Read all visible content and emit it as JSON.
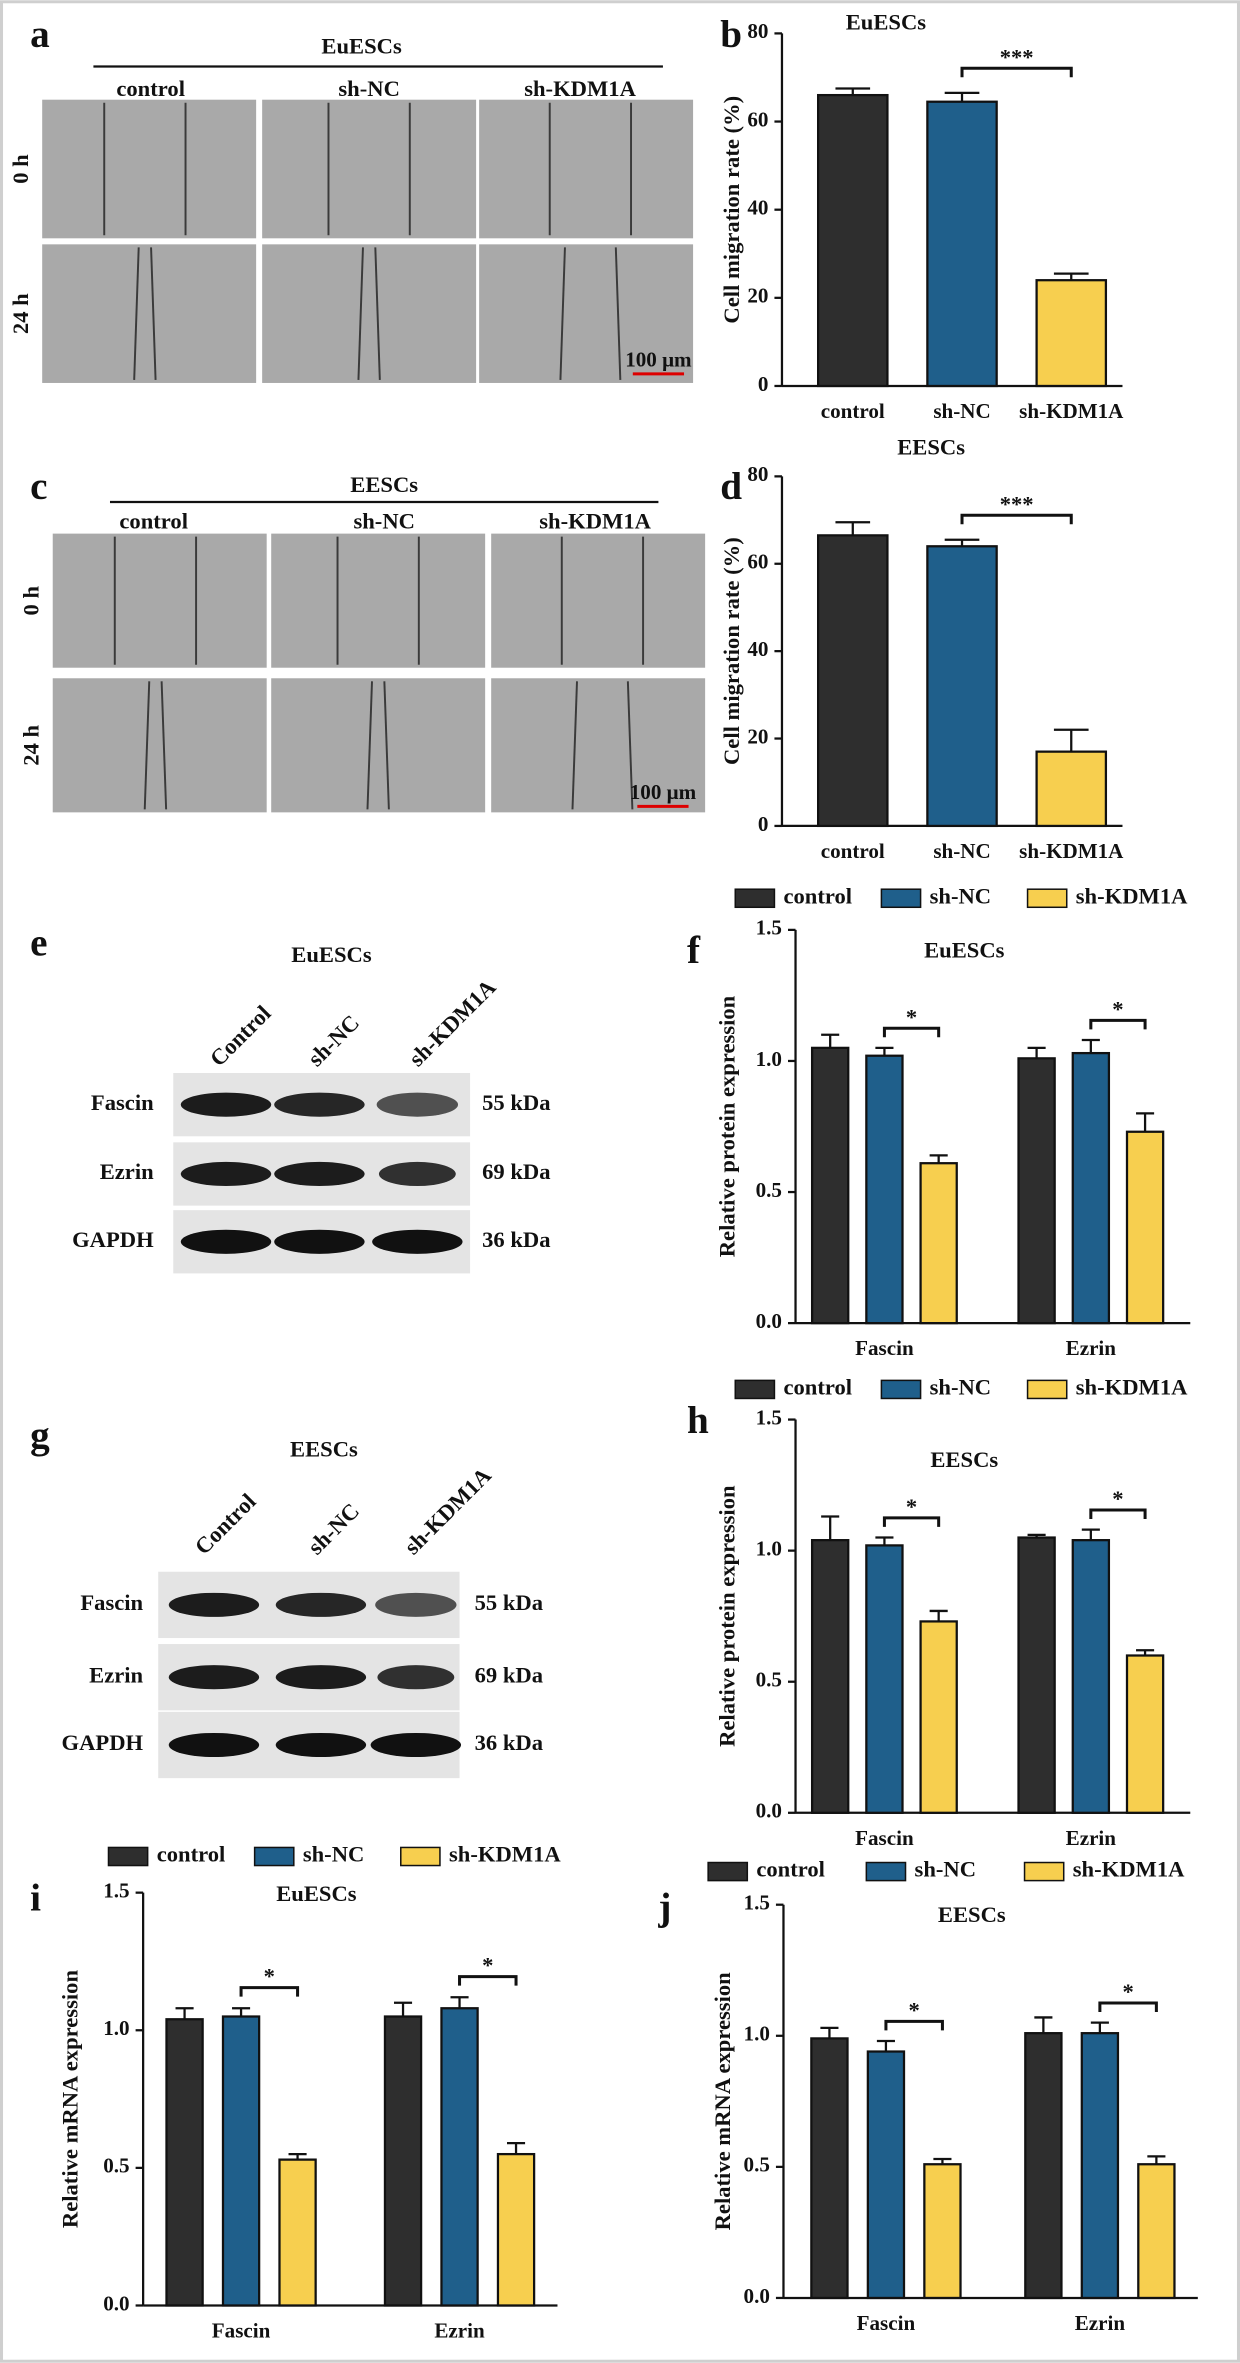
{
  "figure": {
    "image_panels": [
      {
        "label": "a",
        "title": "EuESCs",
        "columns": [
          "control",
          "sh-NC",
          "sh-KDM1A"
        ],
        "rows": [
          "0 h",
          "24 h"
        ],
        "scale_bar": "100 μm"
      },
      {
        "label": "c",
        "title": "EESCs",
        "columns": [
          "control",
          "sh-NC",
          "sh-KDM1A"
        ],
        "rows": [
          "0 h",
          "24 h"
        ],
        "scale_bar": "100 μm"
      }
    ],
    "blot_panels": [
      {
        "label": "e",
        "title": "EuESCs",
        "lanes": [
          "Control",
          "sh-NC",
          "sh-KDM1A"
        ],
        "proteins": [
          "Fascin",
          "Ezrin",
          "GAPDH"
        ],
        "sizes": [
          "55 kDa",
          "69 kDa",
          "36 kDa"
        ]
      },
      {
        "label": "g",
        "title": "EESCs",
        "lanes": [
          "Control",
          "sh-NC",
          "sh-KDM1A"
        ],
        "proteins": [
          "Fascin",
          "Ezrin",
          "GAPDH"
        ],
        "sizes": [
          "55 kDa",
          "69 kDa",
          "36 kDa"
        ]
      }
    ]
  },
  "chart_data": [
    {
      "type": "bar",
      "label": "b",
      "title": "EuESCs",
      "y_label": "Cell migration rate (%)",
      "categories": [
        "control",
        "sh-NC",
        "sh-KDM1A"
      ],
      "values": [
        66,
        64.5,
        24
      ],
      "errors": [
        1.5,
        2,
        1.5
      ],
      "colors": [
        "#2e2e2e",
        "#1f5f8b",
        "#f7cf4f"
      ],
      "ylim": [
        0,
        80
      ],
      "yticks": [
        0,
        20,
        40,
        60,
        80
      ],
      "significance": "***"
    },
    {
      "type": "bar",
      "label": "d",
      "title": "EESCs",
      "y_label": "Cell migration rate (%)",
      "categories": [
        "control",
        "sh-NC",
        "sh-KDM1A"
      ],
      "values": [
        66.5,
        64,
        17
      ],
      "errors": [
        3,
        1.5,
        5
      ],
      "colors": [
        "#2e2e2e",
        "#1f5f8b",
        "#f7cf4f"
      ],
      "ylim": [
        0,
        80
      ],
      "yticks": [
        0,
        20,
        40,
        60,
        80
      ],
      "significance": "***"
    },
    {
      "type": "grouped_bar",
      "label": "f",
      "title": "EuESCs",
      "y_label": "Relative  protein expression",
      "legend": "top",
      "categories": [
        "Fascin",
        "Ezrin"
      ],
      "series": [
        {
          "name": "control",
          "color": "#2e2e2e",
          "values": [
            1.05,
            1.01
          ],
          "errors": [
            0.05,
            0.04
          ]
        },
        {
          "name": "sh-NC",
          "color": "#1f5f8b",
          "values": [
            1.02,
            1.03
          ],
          "errors": [
            0.03,
            0.05
          ]
        },
        {
          "name": "sh-KDM1A",
          "color": "#f7cf4f",
          "values": [
            0.61,
            0.73
          ],
          "errors": [
            0.03,
            0.07
          ]
        }
      ],
      "ylim": [
        0,
        1.5
      ],
      "yticks": [
        {
          "value": 0,
          "label": "0.0"
        },
        {
          "value": 0.5,
          "label": "0.5"
        },
        {
          "value": 1,
          "label": "1.0"
        },
        {
          "value": 1.5,
          "label": "1.5"
        }
      ],
      "significance": [
        "*",
        "*"
      ]
    },
    {
      "type": "grouped_bar",
      "label": "h",
      "title": "EESCs",
      "y_label": "Relative  protein expression",
      "legend": "top",
      "categories": [
        "Fascin",
        "Ezrin"
      ],
      "series": [
        {
          "name": "control",
          "color": "#2e2e2e",
          "values": [
            1.04,
            1.05
          ],
          "errors": [
            0.09,
            0.01
          ]
        },
        {
          "name": "sh-NC",
          "color": "#1f5f8b",
          "values": [
            1.02,
            1.04
          ],
          "errors": [
            0.03,
            0.04
          ]
        },
        {
          "name": "sh-KDM1A",
          "color": "#f7cf4f",
          "values": [
            0.73,
            0.6
          ],
          "errors": [
            0.04,
            0.02
          ]
        }
      ],
      "ylim": [
        0,
        1.5
      ],
      "yticks": [
        {
          "value": 0,
          "label": "0.0"
        },
        {
          "value": 0.5,
          "label": "0.5"
        },
        {
          "value": 1,
          "label": "1.0"
        },
        {
          "value": 1.5,
          "label": "1.5"
        }
      ],
      "significance": [
        "*",
        "*"
      ]
    },
    {
      "type": "grouped_bar",
      "label": "i",
      "title": "EuESCs",
      "y_label": "Relative  mRNA expression",
      "legend": "top",
      "categories": [
        "Fascin",
        "Ezrin"
      ],
      "series": [
        {
          "name": "control",
          "color": "#2e2e2e",
          "values": [
            1.04,
            1.05
          ],
          "errors": [
            0.04,
            0.05
          ]
        },
        {
          "name": "sh-NC",
          "color": "#1f5f8b",
          "values": [
            1.05,
            1.08
          ],
          "errors": [
            0.03,
            0.04
          ]
        },
        {
          "name": "sh-KDM1A",
          "color": "#f7cf4f",
          "values": [
            0.53,
            0.55
          ],
          "errors": [
            0.02,
            0.04
          ]
        }
      ],
      "ylim": [
        0,
        1.5
      ],
      "yticks": [
        {
          "value": 0,
          "label": "0.0"
        },
        {
          "value": 0.5,
          "label": "0.5"
        },
        {
          "value": 1,
          "label": "1.0"
        },
        {
          "value": 1.5,
          "label": "1.5"
        }
      ],
      "significance": [
        "*",
        "*"
      ]
    },
    {
      "type": "grouped_bar",
      "label": "j",
      "title": "EESCs",
      "y_label": "Relative  mRNA expression",
      "legend": "top",
      "categories": [
        "Fascin",
        "Ezrin"
      ],
      "series": [
        {
          "name": "control",
          "color": "#2e2e2e",
          "values": [
            0.99,
            1.01
          ],
          "errors": [
            0.04,
            0.06
          ]
        },
        {
          "name": "sh-NC",
          "color": "#1f5f8b",
          "values": [
            0.94,
            1.01
          ],
          "errors": [
            0.04,
            0.04
          ]
        },
        {
          "name": "sh-KDM1A",
          "color": "#f7cf4f",
          "values": [
            0.51,
            0.51
          ],
          "errors": [
            0.02,
            0.03
          ]
        }
      ],
      "ylim": [
        0,
        1.5
      ],
      "yticks": [
        {
          "value": 0,
          "label": "0.0"
        },
        {
          "value": 0.5,
          "label": "0.5"
        },
        {
          "value": 1,
          "label": "1.0"
        },
        {
          "value": 1.5,
          "label": "1.5"
        }
      ],
      "significance": [
        "*",
        "*"
      ]
    }
  ]
}
